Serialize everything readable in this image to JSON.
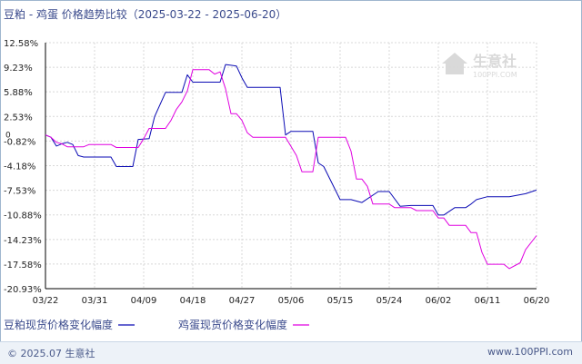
{
  "title": "豆粕 - 鸡蛋 价格趋势比较（2025-03-22 - 2025-06-20）",
  "footer": {
    "copyright": "© 2025.07 生意社",
    "site": "www.100PPI.com"
  },
  "watermark": {
    "brand": "生意社",
    "domain": "100PPI.COM",
    "color": "#d9d9d9"
  },
  "colors": {
    "series1": "#0a0ab4",
    "series2": "#e000e0",
    "axis": "#000000",
    "grid": "#d8d8d8",
    "title": "#3a4a8c"
  },
  "chart_data": {
    "type": "line",
    "grid": true,
    "legend_position": "bottom",
    "ylim": [
      -20.93,
      12.58
    ],
    "yticks": [
      12.58,
      9.23,
      5.88,
      2.53,
      -0.82,
      -4.18,
      -7.53,
      -10.88,
      -14.23,
      -17.58,
      -20.93
    ],
    "ytick_labels": [
      "12.58%",
      "9.23%",
      "5.88%",
      "2.53%",
      "-0.82%",
      "-4.18%",
      "-7.53%",
      "-10.88%",
      "-14.23%",
      "-17.58%",
      "-20.93%"
    ],
    "zero_label": "0",
    "x_start": "2025-03-22",
    "x_end": "2025-06-20",
    "xticks": [
      "2025-03-22",
      "2025-03-31",
      "2025-04-09",
      "2025-04-18",
      "2025-04-27",
      "2025-05-06",
      "2025-05-15",
      "2025-05-24",
      "2025-06-02",
      "2025-06-11",
      "2025-06-20"
    ],
    "xtick_labels": [
      "03/22",
      "03/31",
      "04/09",
      "04/18",
      "04/27",
      "05/06",
      "05/15",
      "05/24",
      "06/02",
      "06/11",
      "06/20"
    ],
    "series": [
      {
        "name": "豆粕现货价格变化幅度",
        "color": "#0a0ab4",
        "points": [
          [
            "2025-03-22",
            0
          ],
          [
            "2025-03-23",
            -0.3
          ],
          [
            "2025-03-24",
            -1.5
          ],
          [
            "2025-03-25",
            -1.2
          ],
          [
            "2025-03-26",
            -1.0
          ],
          [
            "2025-03-27",
            -1.3
          ],
          [
            "2025-03-28",
            -2.8
          ],
          [
            "2025-03-29",
            -3.0
          ],
          [
            "2025-04-01",
            -3.0
          ],
          [
            "2025-04-03",
            -3.0
          ],
          [
            "2025-04-04",
            -4.3
          ],
          [
            "2025-04-07",
            -4.3
          ],
          [
            "2025-04-08",
            -0.6
          ],
          [
            "2025-04-10",
            -0.5
          ],
          [
            "2025-04-11",
            2.5
          ],
          [
            "2025-04-13",
            5.8
          ],
          [
            "2025-04-14",
            5.8
          ],
          [
            "2025-04-16",
            5.8
          ],
          [
            "2025-04-17",
            8.2
          ],
          [
            "2025-04-18",
            7.2
          ],
          [
            "2025-04-23",
            7.2
          ],
          [
            "2025-04-24",
            9.6
          ],
          [
            "2025-04-26",
            9.4
          ],
          [
            "2025-04-27",
            7.8
          ],
          [
            "2025-04-28",
            6.5
          ],
          [
            "2025-04-30",
            6.5
          ],
          [
            "2025-05-04",
            6.5
          ],
          [
            "2025-05-05",
            0
          ],
          [
            "2025-05-06",
            0.5
          ],
          [
            "2025-05-10",
            0.5
          ],
          [
            "2025-05-11",
            -3.8
          ],
          [
            "2025-05-12",
            -4.3
          ],
          [
            "2025-05-15",
            -8.8
          ],
          [
            "2025-05-17",
            -8.8
          ],
          [
            "2025-05-19",
            -9.2
          ],
          [
            "2025-05-22",
            -7.7
          ],
          [
            "2025-05-24",
            -7.7
          ],
          [
            "2025-05-26",
            -9.7
          ],
          [
            "2025-05-28",
            -9.6
          ],
          [
            "2025-06-01",
            -9.6
          ],
          [
            "2025-06-02",
            -10.9
          ],
          [
            "2025-06-03",
            -10.9
          ],
          [
            "2025-06-05",
            -9.9
          ],
          [
            "2025-06-07",
            -9.9
          ],
          [
            "2025-06-08",
            -9.4
          ],
          [
            "2025-06-09",
            -8.8
          ],
          [
            "2025-06-11",
            -8.4
          ],
          [
            "2025-06-12",
            -8.4
          ],
          [
            "2025-06-15",
            -8.4
          ],
          [
            "2025-06-18",
            -8.0
          ],
          [
            "2025-06-20",
            -7.5
          ]
        ]
      },
      {
        "name": "鸡蛋现货价格变化幅度",
        "color": "#e000e0",
        "points": [
          [
            "2025-03-22",
            0
          ],
          [
            "2025-03-23",
            -0.3
          ],
          [
            "2025-03-24",
            -1.0
          ],
          [
            "2025-03-25",
            -1.2
          ],
          [
            "2025-03-26",
            -1.6
          ],
          [
            "2025-03-29",
            -1.6
          ],
          [
            "2025-03-30",
            -1.3
          ],
          [
            "2025-04-03",
            -1.3
          ],
          [
            "2025-04-04",
            -1.7
          ],
          [
            "2025-04-08",
            -1.7
          ],
          [
            "2025-04-09",
            -0.5
          ],
          [
            "2025-04-10",
            0.9
          ],
          [
            "2025-04-13",
            0.9
          ],
          [
            "2025-04-14",
            2.0
          ],
          [
            "2025-04-15",
            3.5
          ],
          [
            "2025-04-16",
            4.5
          ],
          [
            "2025-04-17",
            6.0
          ],
          [
            "2025-04-18",
            8.9
          ],
          [
            "2025-04-21",
            8.9
          ],
          [
            "2025-04-22",
            8.3
          ],
          [
            "2025-04-23",
            8.6
          ],
          [
            "2025-04-24",
            6.3
          ],
          [
            "2025-04-25",
            2.9
          ],
          [
            "2025-04-26",
            2.9
          ],
          [
            "2025-04-27",
            2.0
          ],
          [
            "2025-04-28",
            0.3
          ],
          [
            "2025-04-29",
            -0.3
          ],
          [
            "2025-05-01",
            -0.3
          ],
          [
            "2025-05-05",
            -0.3
          ],
          [
            "2025-05-07",
            -2.8
          ],
          [
            "2025-05-08",
            -5.0
          ],
          [
            "2025-05-10",
            -5.0
          ],
          [
            "2025-05-11",
            -0.3
          ],
          [
            "2025-05-12",
            -0.3
          ],
          [
            "2025-05-16",
            -0.3
          ],
          [
            "2025-05-17",
            -2.2
          ],
          [
            "2025-05-18",
            -6.0
          ],
          [
            "2025-05-19",
            -6.0
          ],
          [
            "2025-05-20",
            -7.0
          ],
          [
            "2025-05-21",
            -9.4
          ],
          [
            "2025-05-23",
            -9.4
          ],
          [
            "2025-05-24",
            -9.4
          ],
          [
            "2025-05-25",
            -9.9
          ],
          [
            "2025-05-28",
            -9.9
          ],
          [
            "2025-05-29",
            -10.3
          ],
          [
            "2025-06-01",
            -10.3
          ],
          [
            "2025-06-02",
            -11.3
          ],
          [
            "2025-06-03",
            -11.3
          ],
          [
            "2025-06-04",
            -12.3
          ],
          [
            "2025-06-07",
            -12.3
          ],
          [
            "2025-06-08",
            -13.3
          ],
          [
            "2025-06-09",
            -13.3
          ],
          [
            "2025-06-10",
            -16.0
          ],
          [
            "2025-06-11",
            -17.6
          ],
          [
            "2025-06-14",
            -17.6
          ],
          [
            "2025-06-15",
            -18.2
          ],
          [
            "2025-06-17",
            -17.4
          ],
          [
            "2025-06-18",
            -15.6
          ],
          [
            "2025-06-20",
            -13.7
          ]
        ]
      }
    ]
  }
}
